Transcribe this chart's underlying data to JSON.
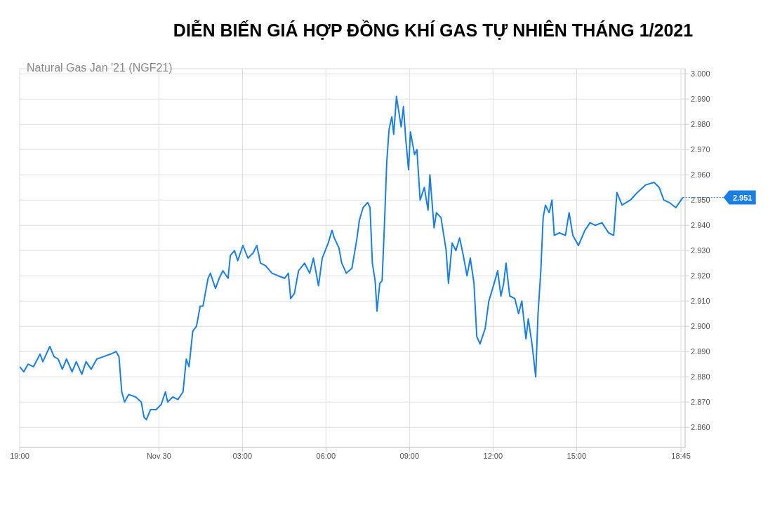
{
  "chart_data": {
    "type": "line",
    "title": "DIỄN BIẾN GIÁ HỢP ĐỒNG KHÍ GAS TỰ NHIÊN THÁNG 1/2021",
    "subtitle": "Natural Gas Jan '21 (NGF21)",
    "x": [
      "--11-29T19:00",
      "--11-29T19:09",
      "--11-29T19:18",
      "--11-29T19:30",
      "--11-29T19:44",
      "--11-29T19:50",
      "--11-29T20:05",
      "--11-29T20:14",
      "--11-29T20:23",
      "--11-29T20:32",
      "--11-29T20:41",
      "--11-29T20:53",
      "--11-29T21:02",
      "--11-29T21:14",
      "--11-29T21:23",
      "--11-29T21:34",
      "--11-29T21:46",
      "--11-29T22:01",
      "--11-29T22:16",
      "--11-29T22:28",
      "--11-29T22:34",
      "--11-29T22:40",
      "--11-29T22:46",
      "--11-29T22:55",
      "--11-29T23:10",
      "--11-29T23:22",
      "--11-29T23:28",
      "--11-29T23:33",
      "--11-29T23:42",
      "--11-29T23:54",
      "--11-30T00:05",
      "--11-30T00:14",
      "--11-30T00:19",
      "--11-30T00:30",
      "--11-30T00:41",
      "--11-30T00:52",
      "--11-30T00:59",
      "--11-30T01:05",
      "--11-30T01:13",
      "--11-30T01:21",
      "--11-30T01:29",
      "--11-30T01:35",
      "--11-30T01:46",
      "--11-30T01:51",
      "--11-30T02:02",
      "--11-30T02:10",
      "--11-30T02:18",
      "--11-30T02:29",
      "--11-30T02:34",
      "--11-30T02:43",
      "--11-30T02:50",
      "--11-30T03:01",
      "--11-30T03:12",
      "--11-30T03:23",
      "--11-30T03:31",
      "--11-30T03:39",
      "--11-30T03:50",
      "--11-30T04:04",
      "--11-30T04:17",
      "--11-30T04:31",
      "--11-30T04:39",
      "--11-30T04:44",
      "--11-30T04:52",
      "--11-30T05:01",
      "--11-30T05:14",
      "--11-30T05:25",
      "--11-30T05:33",
      "--11-30T05:44",
      "--11-30T05:52",
      "--11-30T06:05",
      "--11-30T06:13",
      "--11-30T06:18",
      "--11-30T06:28",
      "--11-30T06:34",
      "--11-30T06:44",
      "--11-30T06:56",
      "--11-30T07:07",
      "--11-30T07:12",
      "--11-30T07:20",
      "--11-30T07:30",
      "--11-30T07:35",
      "--11-30T07:40",
      "--11-30T07:46",
      "--11-30T07:50",
      "--11-30T07:56",
      "--11-30T08:01",
      "--11-30T08:06",
      "--11-30T08:11",
      "--11-30T08:16",
      "--11-30T08:22",
      "--11-30T08:26",
      "--11-30T08:32",
      "--11-30T08:37",
      "--11-30T08:42",
      "--11-30T08:47",
      "--11-30T08:52",
      "--11-30T08:58",
      "--11-30T09:02",
      "--11-30T09:11",
      "--11-30T09:16",
      "--11-30T09:23",
      "--11-30T09:32",
      "--11-30T09:40",
      "--11-30T09:44",
      "--11-30T09:53",
      "--11-30T09:58",
      "--11-30T10:08",
      "--11-30T10:19",
      "--11-30T10:24",
      "--11-30T10:32",
      "--11-30T10:40",
      "--11-30T10:48",
      "--11-30T10:56",
      "--11-30T11:04",
      "--11-30T11:11",
      "--11-30T11:19",
      "--11-30T11:25",
      "--11-30T11:32",
      "--11-30T11:43",
      "--11-30T11:51",
      "--11-30T11:56",
      "--11-30T12:04",
      "--11-30T12:10",
      "--11-30T12:17",
      "--11-30T12:23",
      "--11-30T12:28",
      "--11-30T12:36",
      "--11-30T12:47",
      "--11-30T12:55",
      "--11-30T13:02",
      "--11-30T13:11",
      "--11-30T13:16",
      "--11-30T13:24",
      "--11-30T13:32",
      "--11-30T13:37",
      "--11-30T13:43",
      "--11-30T13:48",
      "--11-30T13:53",
      "--11-30T14:01",
      "--11-30T14:07",
      "--11-30T14:12",
      "--11-30T14:23",
      "--11-30T14:36",
      "--11-30T14:44",
      "--11-30T14:52",
      "--11-30T15:04",
      "--11-30T15:18",
      "--11-30T15:29",
      "--11-30T15:40",
      "--11-30T15:55",
      "--11-30T16:09",
      "--11-30T16:20",
      "--11-30T16:27",
      "--11-30T16:38",
      "--11-30T16:56",
      "--11-30T17:11",
      "--11-30T17:29",
      "--11-30T17:47",
      "--11-30T17:58",
      "--11-30T18:08",
      "--11-30T18:20",
      "--11-30T18:34",
      "--11-30T18:49"
    ],
    "series": [
      {
        "color": "#1a7fe3",
        "values": [
          2.884,
          2.882,
          2.885,
          2.884,
          2.889,
          2.886,
          2.892,
          2.888,
          2.887,
          2.883,
          2.887,
          2.882,
          2.886,
          2.881,
          2.886,
          2.883,
          2.887,
          2.888,
          2.889,
          2.89,
          2.888,
          2.874,
          2.87,
          2.873,
          2.872,
          2.87,
          2.864,
          2.863,
          2.867,
          2.867,
          2.869,
          2.874,
          2.87,
          2.872,
          2.871,
          2.874,
          2.887,
          2.884,
          2.898,
          2.9,
          2.908,
          2.908,
          2.919,
          2.921,
          2.915,
          2.919,
          2.922,
          2.919,
          2.928,
          2.93,
          2.926,
          2.932,
          2.927,
          2.929,
          2.932,
          2.925,
          2.924,
          2.921,
          2.92,
          2.919,
          2.921,
          2.911,
          2.913,
          2.922,
          2.925,
          2.921,
          2.927,
          2.916,
          2.927,
          2.933,
          2.938,
          2.935,
          2.931,
          2.925,
          2.921,
          2.923,
          2.935,
          2.942,
          2.947,
          2.949,
          2.947,
          2.925,
          2.918,
          2.906,
          2.917,
          2.918,
          2.94,
          2.965,
          2.978,
          2.983,
          2.976,
          2.991,
          2.985,
          2.979,
          2.987,
          2.974,
          2.962,
          2.977,
          2.968,
          2.97,
          2.95,
          2.955,
          2.946,
          2.96,
          2.939,
          2.945,
          2.943,
          2.93,
          2.917,
          2.933,
          2.93,
          2.935,
          2.928,
          2.92,
          2.927,
          2.917,
          2.896,
          2.893,
          2.899,
          2.91,
          2.913,
          2.918,
          2.922,
          2.912,
          2.917,
          2.925,
          2.912,
          2.911,
          2.905,
          2.91,
          2.895,
          2.903,
          2.893,
          2.88,
          2.905,
          2.922,
          2.943,
          2.948,
          2.945,
          2.95,
          2.936,
          2.937,
          2.936,
          2.945,
          2.936,
          2.932,
          2.938,
          2.941,
          2.94,
          2.941,
          2.937,
          2.936,
          2.953,
          2.948,
          2.95,
          2.953,
          2.956,
          2.957,
          2.955,
          2.95,
          2.949,
          2.947,
          2.951
        ]
      }
    ],
    "xlim": [
      "--11-29T19:00",
      "--11-30T18:54"
    ],
    "xticks": [
      {
        "value": "--11-29T19:00",
        "label": "19:00"
      },
      {
        "value": "--11-30T00:00",
        "label": "Nov 30"
      },
      {
        "value": "--11-30T03:00",
        "label": "03:00"
      },
      {
        "value": "--11-30T06:00",
        "label": "06:00"
      },
      {
        "value": "--11-30T09:00",
        "label": "09:00"
      },
      {
        "value": "--11-30T12:00",
        "label": "12:00"
      },
      {
        "value": "--11-30T15:00",
        "label": "15:00"
      },
      {
        "value": "--11-30T18:45",
        "label": "18:45"
      }
    ],
    "ylim": [
      2.852,
      3.002
    ],
    "yticks": [
      {
        "value": 2.86,
        "label": "2.860"
      },
      {
        "value": 2.87,
        "label": "2.870"
      },
      {
        "value": 2.88,
        "label": "2.880"
      },
      {
        "value": 2.89,
        "label": "2.890"
      },
      {
        "value": 2.9,
        "label": "2.900"
      },
      {
        "value": 2.91,
        "label": "2.910"
      },
      {
        "value": 2.92,
        "label": "2.920"
      },
      {
        "value": 2.93,
        "label": "2.930"
      },
      {
        "value": 2.94,
        "label": "2.940"
      },
      {
        "value": 2.95,
        "label": "2.950"
      },
      {
        "value": 2.96,
        "label": "2.960"
      },
      {
        "value": 2.97,
        "label": "2.970"
      },
      {
        "value": 2.98,
        "label": "2.980"
      },
      {
        "value": 2.99,
        "label": "2.990"
      },
      {
        "value": 3,
        "label": "3.000"
      }
    ],
    "annotations": [
      {
        "text": "2.951",
        "x": "--11-30T18:49",
        "y": 2.951
      }
    ],
    "grid": true,
    "marker": "none",
    "line_style": "solid",
    "legend": false
  }
}
